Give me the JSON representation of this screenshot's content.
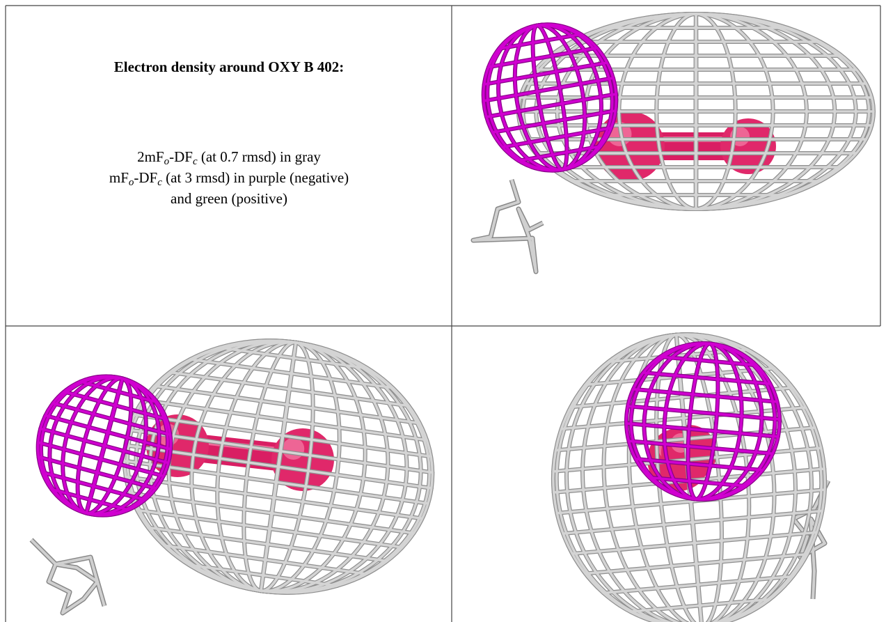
{
  "figure": {
    "title": "Electron density around OXY B 402:",
    "legend": {
      "line1": [
        "2mF",
        "o",
        "-DF",
        "c",
        " (at 0.7 rmsd) in gray"
      ],
      "line2": [
        "mF",
        "o",
        "-DF",
        "c",
        " (at 3 rmsd) in purple (negative)"
      ],
      "line3": "and green (positive)"
    }
  }
}
